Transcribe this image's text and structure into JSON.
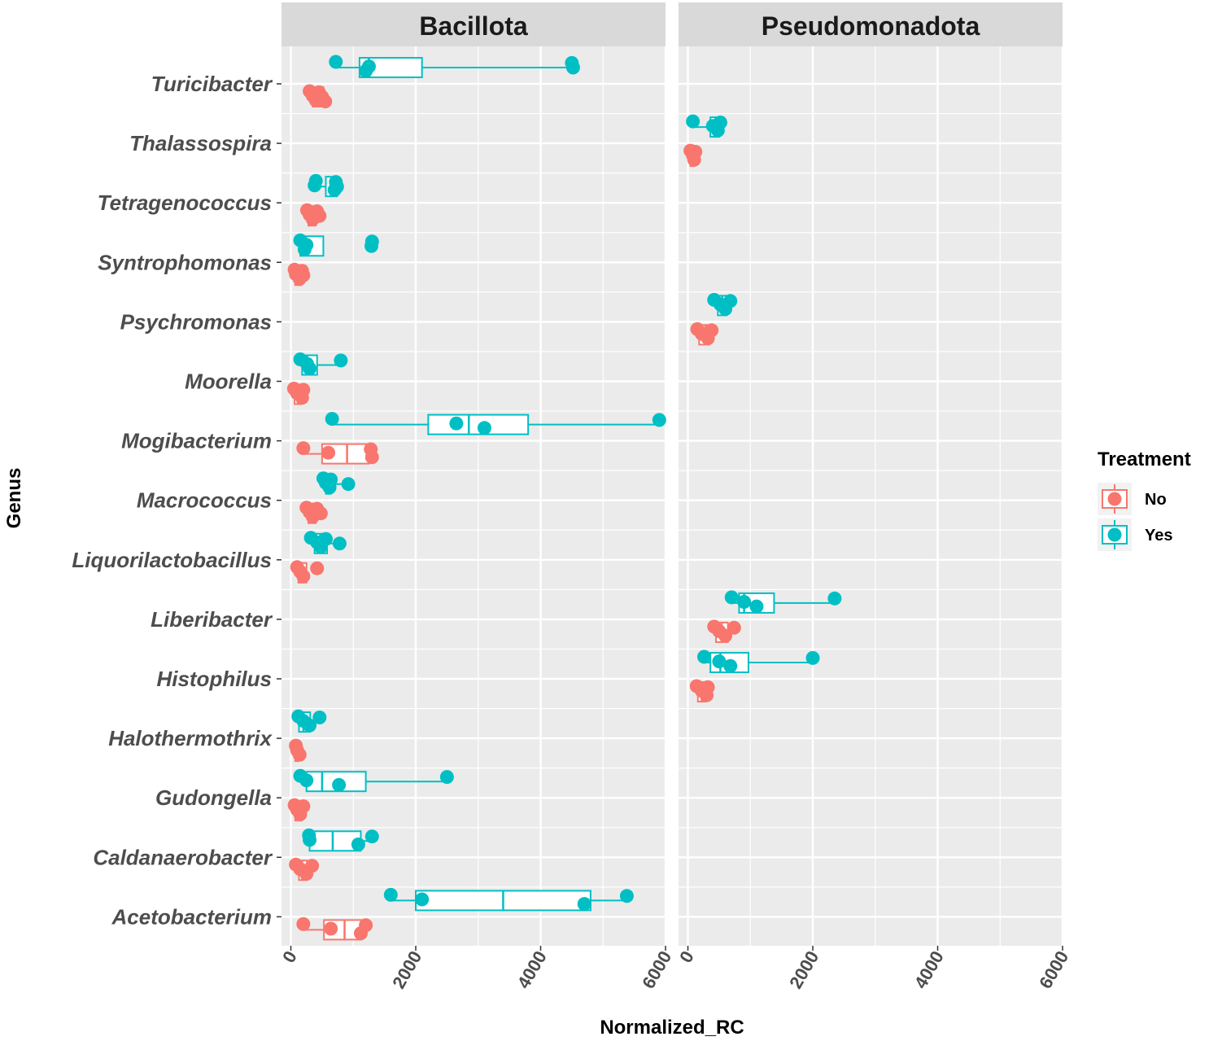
{
  "chart_data": {
    "type": "boxplot",
    "xlabel": "Normalized_RC",
    "ylabel": "Genus",
    "xlim": [
      -150,
      6000
    ],
    "x_ticks": [
      "0",
      "2000",
      "4000",
      "6000"
    ],
    "x_tick_values": [
      0,
      2000,
      4000,
      6000
    ],
    "grid": true,
    "legend": {
      "title": "Treatment",
      "position": "right",
      "entries": [
        {
          "label": "No",
          "color": "#F8766D"
        },
        {
          "label": "Yes",
          "color": "#00BFC4"
        }
      ]
    },
    "colors": {
      "No": "#F8766D",
      "Yes": "#00BFC4",
      "panel_bg": "#EBEBEB",
      "strip_bg": "#D9D9D9",
      "grid": "#FFFFFF"
    },
    "genera": [
      "Turicibacter",
      "Thalassospira",
      "Tetragenococcus",
      "Syntrophomonas",
      "Psychromonas",
      "Moorella",
      "Mogibacterium",
      "Macrococcus",
      "Liquorilactobacillus",
      "Liberibacter",
      "Histophilus",
      "Halothermothrix",
      "Gudongella",
      "Caldanaerobacter",
      "Acetobacterium"
    ],
    "facets": [
      {
        "name": "Bacillota",
        "groups": [
          {
            "genus": "Turicibacter",
            "treatment": "Yes",
            "box": [
              700,
              1100,
              1250,
              2100,
              4500
            ],
            "points": [
              720,
              1250,
              1200,
              4500,
              4520
            ]
          },
          {
            "genus": "Turicibacter",
            "treatment": "No",
            "box": [
              280,
              350,
              430,
              520,
              600
            ],
            "points": [
              300,
              350,
              400,
              450,
              500,
              550,
              420
            ]
          },
          {
            "genus": "Tetragenococcus",
            "treatment": "Yes",
            "box": [
              350,
              560,
              700,
              740,
              760
            ],
            "points": [
              400,
              380,
              700,
              720,
              740
            ]
          },
          {
            "genus": "Tetragenococcus",
            "treatment": "No",
            "box": [
              230,
              280,
              330,
              400,
              450
            ],
            "points": [
              260,
              300,
              350,
              420,
              460
            ]
          },
          {
            "genus": "Syntrophomonas",
            "treatment": "Yes",
            "box": [
              120,
              150,
              240,
              520,
              520
            ],
            "points": [
              150,
              250,
              220,
              1300,
              1290
            ]
          },
          {
            "genus": "Syntrophomonas",
            "treatment": "No",
            "box": [
              40,
              70,
              110,
              170,
              220
            ],
            "points": [
              60,
              80,
              140,
              180,
              200
            ]
          },
          {
            "genus": "Moorella",
            "treatment": "Yes",
            "box": [
              110,
              180,
              260,
              420,
              800
            ],
            "points": [
              150,
              260,
              300,
              800
            ]
          },
          {
            "genus": "Moorella",
            "treatment": "No",
            "box": [
              20,
              60,
              110,
              160,
              220
            ],
            "points": [
              50,
              100,
              180,
              200
            ]
          },
          {
            "genus": "Mogibacterium",
            "treatment": "Yes",
            "box": [
              660,
              2200,
              2850,
              3800,
              5900
            ],
            "points": [
              660,
              2650,
              3100,
              5900
            ]
          },
          {
            "genus": "Mogibacterium",
            "treatment": "No",
            "box": [
              200,
              500,
              900,
              1250,
              1300
            ],
            "points": [
              200,
              600,
              1300,
              1280
            ]
          },
          {
            "genus": "Macrococcus",
            "treatment": "Yes",
            "box": [
              500,
              560,
              610,
              640,
              900
            ],
            "points": [
              520,
              560,
              620,
              640,
              920
            ]
          },
          {
            "genus": "Macrococcus",
            "treatment": "No",
            "box": [
              220,
              280,
              330,
              400,
              500
            ],
            "points": [
              250,
              300,
              350,
              420,
              480
            ]
          },
          {
            "genus": "Liquorilactobacillus",
            "treatment": "Yes",
            "box": [
              300,
              380,
              470,
              580,
              780
            ],
            "points": [
              320,
              420,
              480,
              560,
              780
            ]
          },
          {
            "genus": "Liquorilactobacillus",
            "treatment": "No",
            "box": [
              80,
              120,
              180,
              250,
              280
            ],
            "points": [
              100,
              150,
              200,
              420
            ]
          },
          {
            "genus": "Halothermothrix",
            "treatment": "Yes",
            "box": [
              90,
              130,
              200,
              310,
              450
            ],
            "points": [
              120,
              200,
              300,
              460
            ]
          },
          {
            "genus": "Halothermothrix",
            "treatment": "No",
            "box": [
              50,
              70,
              100,
              120,
              150
            ],
            "points": [
              80,
              100,
              140
            ]
          },
          {
            "genus": "Gudongella",
            "treatment": "Yes",
            "box": [
              150,
              250,
              500,
              1200,
              2500
            ],
            "points": [
              150,
              250,
              770,
              2500
            ]
          },
          {
            "genus": "Gudongella",
            "treatment": "No",
            "box": [
              40,
              70,
              120,
              170,
              210
            ],
            "points": [
              60,
              100,
              150,
              200
            ]
          },
          {
            "genus": "Caldanaerobacter",
            "treatment": "Yes",
            "box": [
              280,
              300,
              670,
              1120,
              1300
            ],
            "points": [
              290,
              300,
              1080,
              1300
            ]
          },
          {
            "genus": "Caldanaerobacter",
            "treatment": "No",
            "box": [
              60,
              130,
              180,
              260,
              350
            ],
            "points": [
              80,
              150,
              250,
              340
            ]
          },
          {
            "genus": "Acetobacterium",
            "treatment": "Yes",
            "box": [
              1600,
              2000,
              3400,
              4800,
              5400
            ],
            "points": [
              1600,
              2100,
              4700,
              5380
            ]
          },
          {
            "genus": "Acetobacterium",
            "treatment": "No",
            "box": [
              180,
              530,
              860,
              1130,
              1200
            ],
            "points": [
              200,
              640,
              1120,
              1200
            ]
          }
        ]
      },
      {
        "name": "Pseudomonadota",
        "groups": [
          {
            "genus": "Thalassospira",
            "treatment": "Yes",
            "box": [
              60,
              360,
              440,
              500,
              520
            ],
            "points": [
              80,
              400,
              480,
              520
            ]
          },
          {
            "genus": "Thalassospira",
            "treatment": "No",
            "box": [
              20,
              40,
              80,
              100,
              120
            ],
            "points": [
              40,
              80,
              100,
              120
            ]
          },
          {
            "genus": "Psychromonas",
            "treatment": "Yes",
            "box": [
              400,
              480,
              550,
              620,
              700
            ],
            "points": [
              420,
              520,
              600,
              680
            ]
          },
          {
            "genus": "Psychromonas",
            "treatment": "No",
            "box": [
              120,
              180,
              280,
              340,
              400
            ],
            "points": [
              150,
              220,
              320,
              380
            ]
          },
          {
            "genus": "Liberibacter",
            "treatment": "Yes",
            "box": [
              680,
              820,
              900,
              1380,
              2350
            ],
            "points": [
              700,
              900,
              1100,
              2350
            ]
          },
          {
            "genus": "Liberibacter",
            "treatment": "No",
            "box": [
              400,
              450,
              540,
              640,
              750
            ],
            "points": [
              420,
              500,
              600,
              740
            ]
          },
          {
            "genus": "Histophilus",
            "treatment": "Yes",
            "box": [
              220,
              360,
              520,
              970,
              2000
            ],
            "points": [
              260,
              500,
              680,
              2000
            ]
          },
          {
            "genus": "Histophilus",
            "treatment": "No",
            "box": [
              120,
              160,
              220,
              280,
              330
            ],
            "points": [
              140,
              220,
              300,
              320
            ]
          }
        ]
      }
    ]
  }
}
